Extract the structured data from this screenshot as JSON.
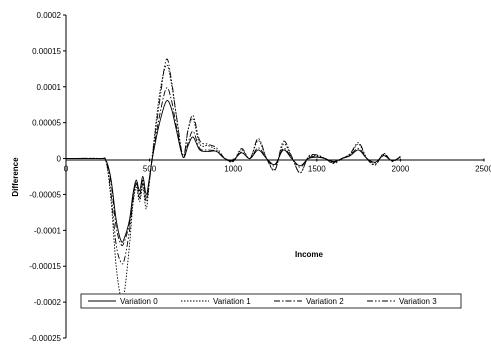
{
  "chart_data": {
    "type": "line",
    "title": "",
    "xlabel": "Income",
    "ylabel": "Difference",
    "xlim": [
      0,
      2500
    ],
    "ylim": [
      -0.00025,
      0.0002
    ],
    "x_ticks": [
      "0",
      "500",
      "1000",
      "1500",
      "2000",
      "2500"
    ],
    "y_ticks": [
      "0.0002",
      "0.00015",
      "0.0001",
      "0.00005",
      "0",
      "-0.00005",
      "-0.0001",
      "-0.00015",
      "-0.0002",
      "-0.00025"
    ],
    "grid": false,
    "legend_position": "bottom-inside",
    "series": [
      {
        "name": "Variation 0",
        "dash": "solid",
        "x": [
          0,
          200,
          240,
          270,
          300,
          330,
          350,
          380,
          400,
          420,
          440,
          460,
          480,
          500,
          520,
          560,
          600,
          630,
          660,
          700,
          730,
          760,
          800,
          850,
          900,
          950,
          1000,
          1050,
          1100,
          1150,
          1200,
          1250,
          1300,
          1350,
          1400,
          1450,
          1500,
          1550,
          1600,
          1650,
          1700,
          1750,
          1800,
          1850,
          1900,
          1950,
          2000
        ],
        "y": [
          0,
          0,
          -3e-06,
          -3e-05,
          -8.5e-05,
          -0.000115,
          -0.00011,
          -8.5e-05,
          -5e-05,
          -3e-05,
          -4.5e-05,
          -2.5e-05,
          -5e-05,
          -2.5e-05,
          5e-06,
          5e-05,
          8e-05,
          7e-05,
          4e-05,
          2e-06,
          1.8e-05,
          3e-05,
          1.2e-05,
          1e-05,
          1e-05,
          0.0,
          -2e-06,
          8e-06,
          0.0,
          1.2e-05,
          0.0,
          -8e-06,
          1.2e-05,
          0.0,
          -1e-05,
          0.0,
          2e-06,
          0.0,
          -4e-06,
          0.0,
          4e-06,
          1.2e-05,
          0.0,
          -5e-06,
          4e-06,
          -3e-06,
          2e-06
        ]
      },
      {
        "name": "Variation 1",
        "dash": "dotted",
        "x": [
          0,
          200,
          240,
          270,
          300,
          330,
          350,
          380,
          400,
          420,
          440,
          460,
          480,
          500,
          520,
          560,
          600,
          630,
          660,
          700,
          730,
          760,
          800,
          850,
          900,
          950,
          1000,
          1050,
          1100,
          1150,
          1200,
          1250,
          1300,
          1350,
          1400,
          1450,
          1500,
          1550,
          1600,
          1650,
          1700,
          1750,
          1800,
          1850,
          1900,
          1950,
          2000
        ],
        "y": [
          0,
          0,
          -5e-06,
          -6e-05,
          -0.00015,
          -0.000195,
          -0.000185,
          -0.00012,
          -6.5e-05,
          -4e-05,
          -6e-05,
          -4e-05,
          -7e-05,
          -3e-05,
          1.2e-05,
          9e-05,
          0.00013,
          0.000105,
          6e-05,
          2e-06,
          4e-05,
          5.5e-05,
          2e-05,
          1.8e-05,
          1.2e-05,
          0.0,
          -4e-06,
          1.2e-05,
          0.0,
          2.5e-05,
          0.0,
          -1.5e-05,
          2e-05,
          2e-06,
          -2e-05,
          2e-06,
          4e-06,
          0.0,
          -6e-06,
          0.0,
          6e-06,
          2e-05,
          0.0,
          -8e-06,
          6e-06,
          -4e-06,
          3e-06
        ]
      },
      {
        "name": "Variation 2",
        "dash": "dashdot",
        "x": [
          0,
          200,
          240,
          270,
          300,
          330,
          350,
          380,
          400,
          420,
          440,
          460,
          480,
          500,
          520,
          560,
          600,
          630,
          660,
          700,
          730,
          760,
          800,
          850,
          900,
          950,
          1000,
          1050,
          1100,
          1150,
          1200,
          1250,
          1300,
          1350,
          1400,
          1450,
          1500,
          1550,
          1600,
          1650,
          1700,
          1750,
          1800,
          1850,
          1900,
          1950,
          2000
        ],
        "y": [
          0,
          0,
          -3e-06,
          -3.5e-05,
          -9.5e-05,
          -0.00012,
          -0.000115,
          -9e-05,
          -5.5e-05,
          -3.2e-05,
          -5e-05,
          -3e-05,
          -5.5e-05,
          -2.7e-05,
          6e-06,
          6e-05,
          9.8e-05,
          8.2e-05,
          4.5e-05,
          2e-06,
          2.2e-05,
          3.8e-05,
          1.4e-05,
          1.2e-05,
          1e-05,
          0.0,
          -3e-06,
          9e-06,
          0.0,
          1.5e-05,
          0.0,
          -1e-05,
          1.4e-05,
          1e-06,
          -1.2e-05,
          1e-06,
          3e-06,
          0.0,
          -5e-06,
          0.0,
          5e-06,
          1.4e-05,
          0.0,
          -6e-06,
          5e-06,
          -3e-06,
          2e-06
        ]
      },
      {
        "name": "Variation 3",
        "dash": "dashdotdot",
        "x": [
          0,
          200,
          240,
          270,
          300,
          330,
          350,
          380,
          400,
          420,
          440,
          460,
          480,
          500,
          520,
          560,
          600,
          630,
          660,
          700,
          730,
          760,
          800,
          850,
          900,
          950,
          1000,
          1050,
          1100,
          1150,
          1200,
          1250,
          1300,
          1350,
          1400,
          1450,
          1500,
          1550,
          1600,
          1650,
          1700,
          1750,
          1800,
          1850,
          1900,
          1950,
          2000
        ],
        "y": [
          0,
          0,
          -4e-06,
          -5e-05,
          -0.00012,
          -0.000145,
          -0.00014,
          -0.0001,
          -6e-05,
          -3.5e-05,
          -5.5e-05,
          -3.5e-05,
          -6e-05,
          -3e-05,
          1e-05,
          8e-05,
          0.000138,
          0.00011,
          6e-05,
          4e-06,
          4e-05,
          6e-05,
          2.5e-05,
          2e-05,
          1.5e-05,
          0.0,
          -4e-06,
          1.4e-05,
          0.0,
          2.8e-05,
          0.0,
          -1.6e-05,
          2.4e-05,
          3e-06,
          -2e-05,
          3e-06,
          5e-06,
          0.0,
          -7e-06,
          0.0,
          7e-06,
          2.2e-05,
          0.0,
          -9e-06,
          7e-06,
          -4e-06,
          3e-06
        ]
      }
    ]
  }
}
